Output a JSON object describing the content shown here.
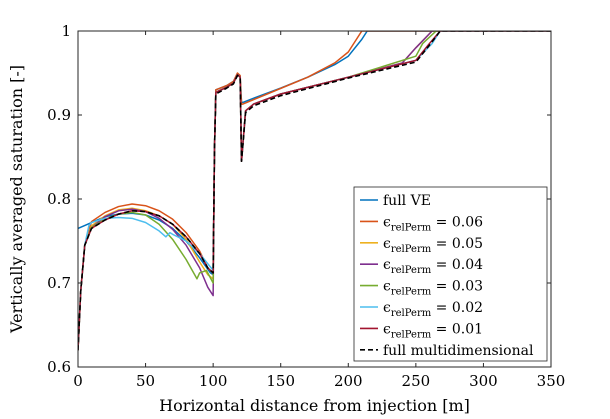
{
  "chart_data": {
    "type": "line",
    "title": "",
    "xlabel": "Horizontal distance from injection [m]",
    "ylabel": "Vertically averaged saturation [-]",
    "xlim": [
      0,
      350
    ],
    "ylim": [
      0.6,
      1.0
    ],
    "xticks": [
      0,
      50,
      100,
      150,
      200,
      250,
      300,
      350
    ],
    "yticks": [
      0.6,
      0.7,
      0.8,
      0.9,
      1.0
    ],
    "xtick_labels": [
      "0",
      "50",
      "100",
      "150",
      "200",
      "250",
      "300",
      "350"
    ],
    "ytick_labels": [
      "0.6",
      "0.7",
      "0.8",
      "0.9",
      "1"
    ],
    "grid": false,
    "legend_position": "lower-right",
    "series": [
      {
        "name": "full VE",
        "label_parts": [
          "full VE"
        ],
        "color": "#0072BD",
        "dash": "solid",
        "x": [
          0,
          10,
          20,
          30,
          40,
          50,
          60,
          70,
          80,
          90,
          98,
          100,
          101,
          102,
          110,
          115,
          118,
          120,
          121,
          122,
          130,
          150,
          170,
          190,
          200,
          210,
          214,
          350
        ],
        "y": [
          0.765,
          0.772,
          0.779,
          0.782,
          0.783,
          0.781,
          0.775,
          0.765,
          0.75,
          0.73,
          0.712,
          0.71,
          0.86,
          0.93,
          0.935,
          0.94,
          0.948,
          0.945,
          0.915,
          0.915,
          0.92,
          0.932,
          0.945,
          0.96,
          0.97,
          0.99,
          1.0,
          1.0
        ]
      },
      {
        "name": "eps = 0.06",
        "label_parts": [
          "ϵ",
          "relPerm",
          " = 0.06"
        ],
        "color": "#D95319",
        "dash": "solid",
        "x": [
          0,
          2,
          5,
          10,
          20,
          30,
          40,
          50,
          60,
          70,
          80,
          90,
          96,
          100,
          101,
          102,
          110,
          115,
          118,
          120,
          121,
          122,
          140,
          170,
          190,
          200,
          210,
          350
        ],
        "y": [
          0.62,
          0.69,
          0.745,
          0.773,
          0.784,
          0.791,
          0.794,
          0.792,
          0.786,
          0.776,
          0.76,
          0.738,
          0.718,
          0.712,
          0.86,
          0.93,
          0.935,
          0.94,
          0.95,
          0.947,
          0.913,
          0.913,
          0.925,
          0.945,
          0.962,
          0.975,
          1.0,
          1.0
        ]
      },
      {
        "name": "eps = 0.05",
        "label_parts": [
          "ϵ",
          "relPerm",
          " = 0.05"
        ],
        "color": "#EDB120",
        "dash": "solid",
        "x": [
          0,
          2,
          5,
          10,
          20,
          30,
          40,
          50,
          60,
          70,
          80,
          90,
          96,
          100,
          101,
          102,
          110,
          115,
          118,
          120,
          121,
          124,
          130,
          150,
          200,
          240,
          250,
          262,
          350
        ],
        "y": [
          0.62,
          0.69,
          0.745,
          0.768,
          0.78,
          0.787,
          0.789,
          0.786,
          0.78,
          0.77,
          0.752,
          0.725,
          0.71,
          0.705,
          0.86,
          0.927,
          0.933,
          0.938,
          0.948,
          0.945,
          0.845,
          0.905,
          0.913,
          0.925,
          0.945,
          0.962,
          0.98,
          1.0,
          1.0
        ]
      },
      {
        "name": "eps = 0.04",
        "label_parts": [
          "ϵ",
          "relPerm",
          " = 0.04"
        ],
        "color": "#7E2F8E",
        "dash": "solid",
        "x": [
          0,
          2,
          5,
          10,
          20,
          30,
          40,
          50,
          60,
          70,
          80,
          90,
          96,
          100,
          101,
          102,
          110,
          115,
          118,
          120,
          121,
          124,
          130,
          150,
          200,
          240,
          250,
          262,
          350
        ],
        "y": [
          0.62,
          0.69,
          0.745,
          0.766,
          0.779,
          0.786,
          0.788,
          0.785,
          0.777,
          0.764,
          0.745,
          0.718,
          0.695,
          0.685,
          0.86,
          0.927,
          0.933,
          0.938,
          0.948,
          0.945,
          0.845,
          0.905,
          0.913,
          0.925,
          0.945,
          0.962,
          0.98,
          1.0,
          1.0
        ]
      },
      {
        "name": "eps = 0.03",
        "label_parts": [
          "ϵ",
          "relPerm",
          " = 0.03"
        ],
        "color": "#77AC30",
        "dash": "solid",
        "x": [
          0,
          2,
          5,
          10,
          20,
          30,
          40,
          50,
          60,
          70,
          80,
          88,
          90,
          95,
          100,
          101,
          102,
          110,
          115,
          118,
          120,
          121,
          124,
          130,
          150,
          200,
          250,
          255,
          265,
          350
        ],
        "y": [
          0.62,
          0.69,
          0.745,
          0.766,
          0.776,
          0.782,
          0.784,
          0.781,
          0.77,
          0.752,
          0.728,
          0.705,
          0.712,
          0.715,
          0.7,
          0.86,
          0.927,
          0.933,
          0.938,
          0.948,
          0.945,
          0.845,
          0.905,
          0.913,
          0.925,
          0.945,
          0.97,
          0.985,
          1.0,
          1.0
        ]
      },
      {
        "name": "eps = 0.02",
        "label_parts": [
          "ϵ",
          "relPerm",
          " = 0.02"
        ],
        "color": "#4DBEEE",
        "dash": "solid",
        "x": [
          0,
          2,
          5,
          8,
          10,
          20,
          30,
          40,
          50,
          60,
          65,
          68,
          70,
          80,
          90,
          100,
          101,
          102,
          110,
          115,
          118,
          120,
          121,
          124,
          130,
          150,
          200,
          250,
          262,
          268,
          350
        ],
        "y": [
          0.62,
          0.69,
          0.745,
          0.768,
          0.772,
          0.777,
          0.778,
          0.777,
          0.772,
          0.762,
          0.755,
          0.76,
          0.758,
          0.75,
          0.735,
          0.715,
          0.86,
          0.927,
          0.933,
          0.938,
          0.948,
          0.945,
          0.845,
          0.905,
          0.913,
          0.925,
          0.945,
          0.965,
          0.985,
          1.0,
          1.0
        ]
      },
      {
        "name": "eps = 0.01",
        "label_parts": [
          "ϵ",
          "relPerm",
          " = 0.01"
        ],
        "color": "#A2142F",
        "dash": "solid",
        "x": [
          0,
          2,
          5,
          10,
          20,
          30,
          40,
          50,
          60,
          70,
          80,
          90,
          96,
          100,
          101,
          102,
          110,
          115,
          118,
          120,
          121,
          124,
          130,
          150,
          200,
          250,
          260,
          268,
          350
        ],
        "y": [
          0.62,
          0.69,
          0.745,
          0.765,
          0.775,
          0.782,
          0.786,
          0.785,
          0.78,
          0.77,
          0.755,
          0.735,
          0.718,
          0.712,
          0.86,
          0.927,
          0.933,
          0.938,
          0.948,
          0.945,
          0.845,
          0.905,
          0.913,
          0.925,
          0.945,
          0.965,
          0.985,
          1.0,
          1.0
        ]
      },
      {
        "name": "full multidimensional",
        "label_parts": [
          "full multidimensional"
        ],
        "color": "#000000",
        "dash": "dashed",
        "x": [
          0,
          2,
          5,
          10,
          20,
          30,
          40,
          50,
          60,
          70,
          80,
          90,
          96,
          100,
          101,
          102,
          110,
          115,
          118,
          120,
          121,
          124,
          130,
          150,
          200,
          250,
          260,
          268,
          350
        ],
        "y": [
          0.62,
          0.69,
          0.745,
          0.765,
          0.775,
          0.782,
          0.786,
          0.785,
          0.78,
          0.77,
          0.755,
          0.735,
          0.718,
          0.712,
          0.86,
          0.925,
          0.932,
          0.937,
          0.947,
          0.944,
          0.845,
          0.903,
          0.911,
          0.923,
          0.944,
          0.963,
          0.983,
          1.0,
          1.0
        ]
      }
    ]
  }
}
